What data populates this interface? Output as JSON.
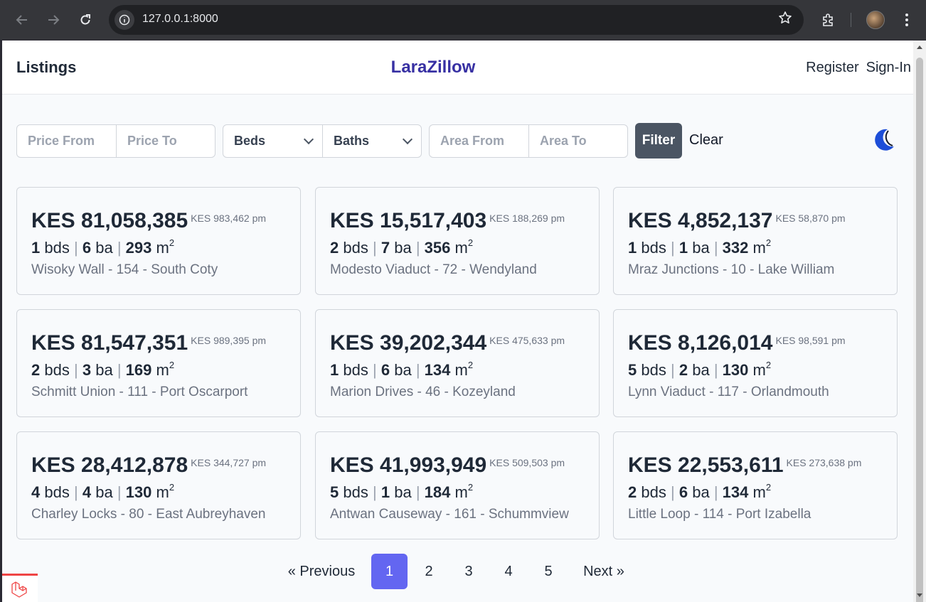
{
  "browser": {
    "url": "127.0.0.1:8000"
  },
  "nav": {
    "listings": "Listings",
    "brand": "LaraZillow",
    "register": "Register",
    "signin": "Sign-In"
  },
  "filters": {
    "price_from_placeholder": "Price From",
    "price_to_placeholder": "Price To",
    "beds": "Beds",
    "baths": "Baths",
    "area_from_placeholder": "Area From",
    "area_to_placeholder": "Area To",
    "filter_label": "Filter",
    "clear_label": "Clear"
  },
  "listings": [
    {
      "price": "KES 81,058,385",
      "monthly": "KES 983,462 pm",
      "beds": "1",
      "baths": "6",
      "area": "293",
      "address": "Wisoky Wall - 154 - South Coty"
    },
    {
      "price": "KES 15,517,403",
      "monthly": "KES 188,269 pm",
      "beds": "2",
      "baths": "7",
      "area": "356",
      "address": "Modesto Viaduct - 72 - Wendyland"
    },
    {
      "price": "KES 4,852,137",
      "monthly": "KES 58,870 pm",
      "beds": "1",
      "baths": "1",
      "area": "332",
      "address": "Mraz Junctions - 10 - Lake William"
    },
    {
      "price": "KES 81,547,351",
      "monthly": "KES 989,395 pm",
      "beds": "2",
      "baths": "3",
      "area": "169",
      "address": "Schmitt Union - 111 - Port Oscarport"
    },
    {
      "price": "KES 39,202,344",
      "monthly": "KES 475,633 pm",
      "beds": "1",
      "baths": "6",
      "area": "134",
      "address": "Marion Drives - 46 - Kozeyland"
    },
    {
      "price": "KES 8,126,014",
      "monthly": "KES 98,591 pm",
      "beds": "5",
      "baths": "2",
      "area": "130",
      "address": "Lynn Viaduct - 117 - Orlandmouth"
    },
    {
      "price": "KES 28,412,878",
      "monthly": "KES 344,727 pm",
      "beds": "4",
      "baths": "4",
      "area": "130",
      "address": "Charley Locks - 80 - East Aubreyhaven"
    },
    {
      "price": "KES 41,993,949",
      "monthly": "KES 509,503 pm",
      "beds": "5",
      "baths": "1",
      "area": "184",
      "address": "Antwan Causeway - 161 - Schummview"
    },
    {
      "price": "KES 22,553,611",
      "monthly": "KES 273,638 pm",
      "beds": "2",
      "baths": "6",
      "area": "134",
      "address": "Little Loop - 114 - Port Izabella"
    }
  ],
  "units": {
    "beds": "bds",
    "baths": "ba",
    "area": "m",
    "area_exp": "2"
  },
  "pagination": {
    "previous": "« Previous",
    "pages": [
      "1",
      "2",
      "3",
      "4",
      "5"
    ],
    "current": "1",
    "next": "Next »"
  }
}
